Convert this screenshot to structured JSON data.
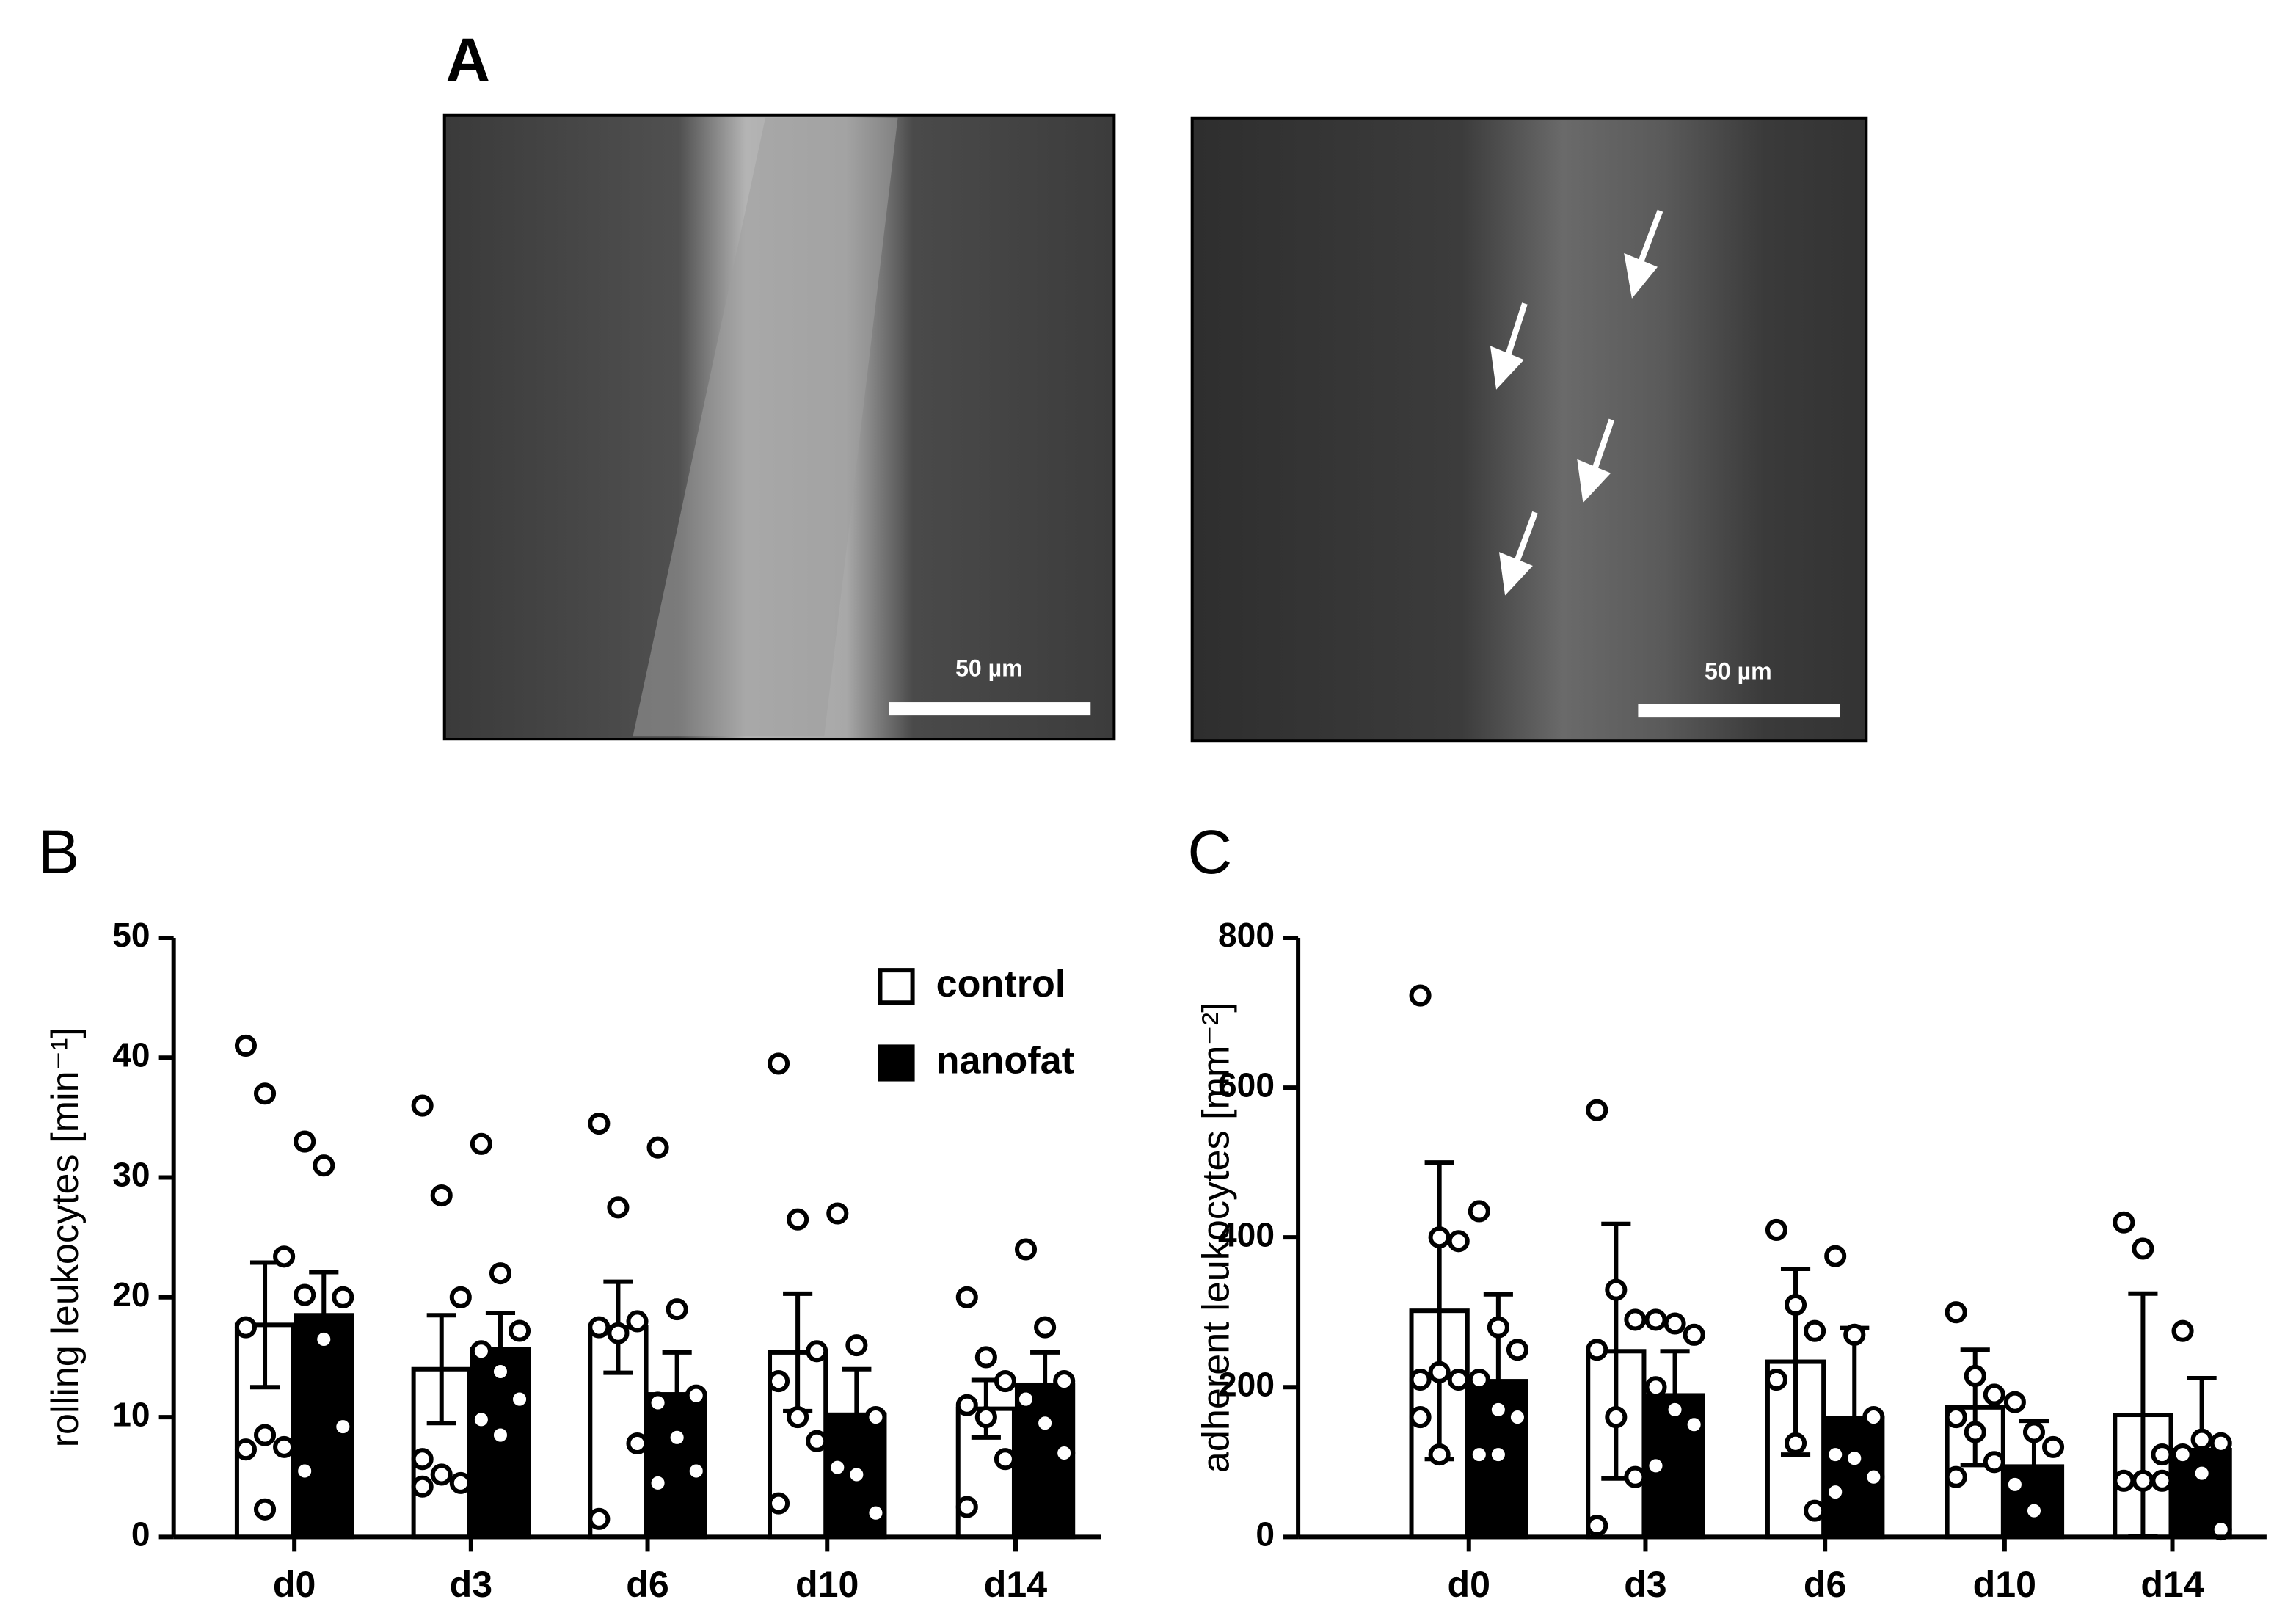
{
  "figure": {
    "panel_labels": [
      "A",
      "B",
      "C"
    ],
    "scale_bar_labels": [
      "50 µm",
      "50 µm"
    ]
  },
  "chart_data": [
    {
      "type": "bar",
      "y_label": "rolling leukocytes [min⁻¹]",
      "categories": [
        "d0",
        "d3",
        "d6",
        "d10",
        "d14"
      ],
      "ylim": [
        0,
        50
      ],
      "yticks": [
        0,
        10,
        20,
        30,
        40,
        50
      ],
      "grid": false,
      "legend": "upper right",
      "series": [
        {
          "name": "control",
          "color": "#ffffff",
          "values": [
            17.7,
            14,
            17.5,
            15.4,
            10.7
          ],
          "errors": [
            5.2,
            4.5,
            3.8,
            4.9,
            2.4
          ],
          "points": [
            [
              41,
              37,
              23.4,
              17.5,
              8.5,
              7.5,
              7.3,
              2.3
            ],
            [
              36,
              28.5,
              20,
              6.5,
              5.2,
              4.5,
              4.2
            ],
            [
              34.5,
              27.5,
              18,
              17.5,
              17,
              7.8,
              1.5
            ],
            [
              39.5,
              26.5,
              15.5,
              13,
              10,
              8,
              2.8
            ],
            [
              20,
              15,
              13,
              11,
              10,
              6.5,
              2.5
            ]
          ]
        },
        {
          "name": "nanofat",
          "color": "#000000",
          "values": [
            18.5,
            15.7,
            11.9,
            10.2,
            12.7
          ],
          "errors": [
            3.6,
            3,
            3.5,
            3.8,
            2.7
          ],
          "points": [
            [
              33,
              31,
              20,
              20.2,
              16.5,
              9.2,
              5.5
            ],
            [
              32.8,
              22,
              17.2,
              15.5,
              13.8,
              11.5,
              9.8,
              8.5
            ],
            [
              32.5,
              19,
              11.8,
              11.2,
              8.3,
              5.5,
              4.5
            ],
            [
              27,
              16,
              10,
              5.8,
              5.2,
              2
            ],
            [
              24,
              17.5,
              13,
              11.5,
              9.5,
              7
            ]
          ]
        }
      ]
    },
    {
      "type": "bar",
      "y_label": "adherent leukocytes [mm⁻²]",
      "categories": [
        "d0",
        "d3",
        "d6",
        "d10",
        "d14"
      ],
      "ylim": [
        0,
        800
      ],
      "yticks": [
        0,
        200,
        400,
        600,
        800
      ],
      "grid": false,
      "series": [
        {
          "name": "control",
          "color": "#ffffff",
          "values": [
            302,
            248,
            234,
            173,
            163
          ],
          "errors": [
            198,
            170,
            124,
            77,
            162
          ],
          "points": [
            [
              723,
              400,
              395,
              210,
              220,
              210,
              160,
              110
            ],
            [
              570,
              330,
              290,
              250,
              160,
              80,
              15
            ],
            [
              410,
              310,
              275,
              210,
              125,
              35
            ],
            [
              300,
              215,
              190,
              160,
              140,
              100,
              80
            ],
            [
              420,
              385,
              110,
              75,
              75,
              75
            ]
          ]
        },
        {
          "name": "nanofat",
          "color": "#000000",
          "values": [
            208,
            189,
            159,
            94,
            116
          ],
          "errors": [
            116,
            59,
            120,
            61,
            96
          ],
          "points": [
            [
              435,
              280,
              250,
              210,
              170,
              160,
              110,
              110
            ],
            [
              290,
              285,
              270,
              200,
              170,
              150,
              95
            ],
            [
              375,
              270,
              160,
              110,
              105,
              80,
              60
            ],
            [
              180,
              140,
              120,
              70,
              35
            ],
            [
              275,
              130,
              125,
              110,
              85,
              10
            ]
          ]
        }
      ]
    }
  ]
}
